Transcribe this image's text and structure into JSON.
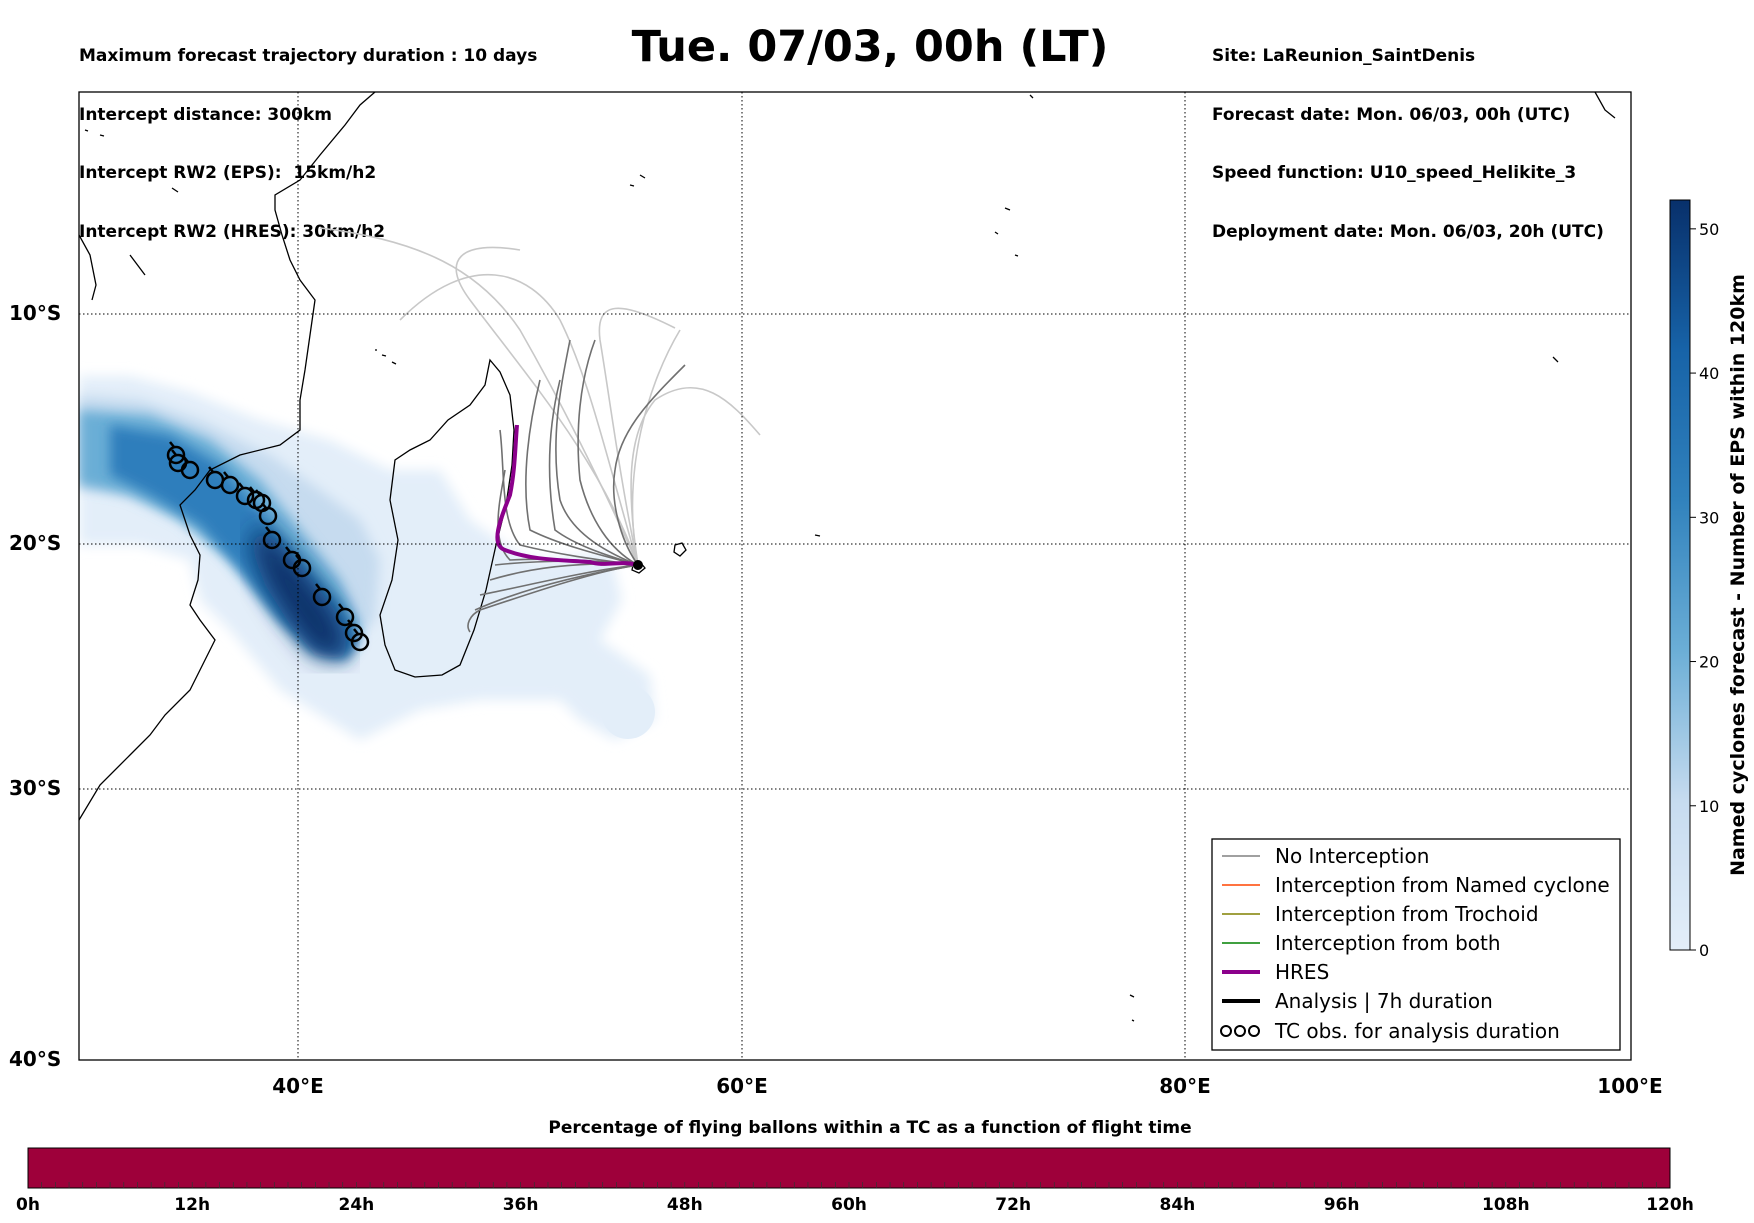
{
  "header": {
    "left_lines": [
      "Maximum forecast trajectory duration : 10 days",
      "Intercept distance: 300km",
      "Intercept RW2 (EPS):  15km/h2",
      "Intercept RW2 (HRES): 30km/h2"
    ],
    "title": "Tue. 07/03, 00h (LT)",
    "right_lines": [
      "Site: LaReunion_SaintDenis",
      "Forecast date: Mon. 06/03, 00h (UTC)",
      "Speed function: U10_speed_Helikite_3",
      "Deployment date: Mon. 06/03, 20h (UTC)"
    ]
  },
  "map": {
    "lat_labels": [
      "10°S",
      "20°S",
      "30°S",
      "40°S"
    ],
    "lon_labels": [
      "40°E",
      "60°E",
      "80°E",
      "100°E"
    ],
    "lon_range": [
      30,
      100
    ],
    "lat_range": [
      -40,
      1
    ],
    "site": {
      "lon": 55.45,
      "lat": -20.9
    }
  },
  "legend": {
    "items": [
      {
        "label": "No Interception",
        "color": "#808080",
        "style": "thin"
      },
      {
        "label": "Interception from Named cyclone",
        "color": "#ff4500",
        "style": "thin"
      },
      {
        "label": "Interception from Trochoid",
        "color": "#808000",
        "style": "thin"
      },
      {
        "label": "Interception from both",
        "color": "#008000",
        "style": "thin"
      },
      {
        "label": "HRES",
        "color": "#8b008b",
        "style": "thick"
      },
      {
        "label": "Analysis | 7h duration",
        "color": "#000000",
        "style": "thick"
      },
      {
        "label": "TC obs. for analysis duration",
        "color": "#000000",
        "style": "cyclone"
      }
    ]
  },
  "colorbar": {
    "label": "Named cyclones forecast - Number of EPS within 120km",
    "ticks": [
      "0",
      "10",
      "20",
      "30",
      "40",
      "50"
    ],
    "max": 52,
    "color_low": "#e3eef9",
    "color_high": "#08306b"
  },
  "bottom": {
    "title": "Percentage of flying ballons within a TC as a function of flight time",
    "bar_color": "#9e003a",
    "ticks": [
      "0h",
      "12h",
      "24h",
      "36h",
      "48h",
      "60h",
      "72h",
      "84h",
      "96h",
      "108h",
      "120h"
    ]
  }
}
